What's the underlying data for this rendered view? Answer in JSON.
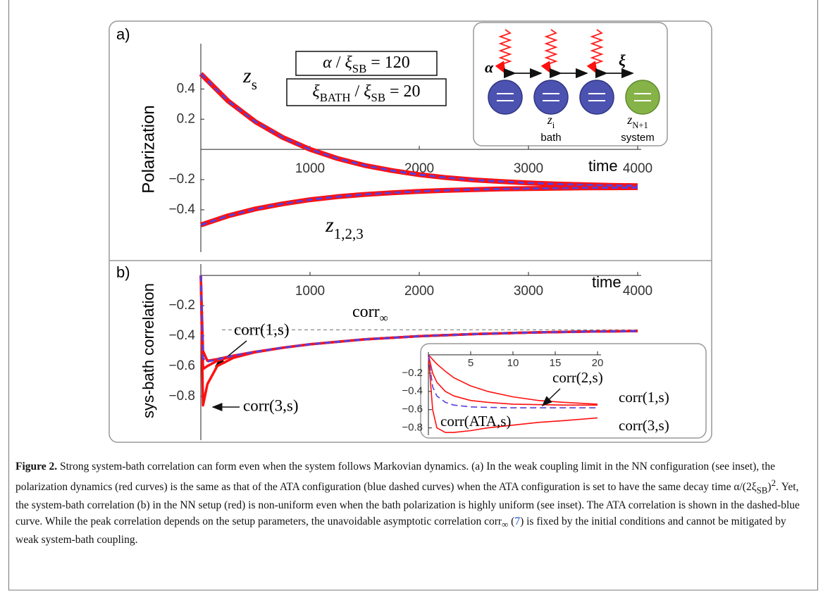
{
  "chart_data": [
    {
      "type": "line",
      "panel_label": "a)",
      "ylabel": "Polarization",
      "xlabel": "time",
      "x": [
        0,
        250,
        500,
        750,
        1000,
        1250,
        1500,
        1750,
        2000,
        2250,
        2500,
        2750,
        3000,
        3250,
        3500,
        3750,
        4000
      ],
      "xlim": [
        0,
        4000
      ],
      "ylim": [
        -0.68,
        0.7
      ],
      "xticks": [
        1000,
        2000,
        3000,
        4000
      ],
      "yticks": [
        {
          "value": -0.4,
          "label": "−0.4"
        },
        {
          "value": -0.2,
          "label": "−0.2"
        },
        0.2,
        0.4
      ],
      "series": [
        {
          "color": "#ff1010",
          "style": "solid",
          "values": [
            0.5,
            0.32,
            0.183,
            0.079,
            0.0,
            -0.06,
            -0.106,
            -0.14,
            -0.167,
            -0.187,
            -0.202,
            -0.213,
            -0.222,
            -0.229,
            -0.234,
            -0.238,
            -0.241
          ]
        },
        {
          "color": "#ff1010",
          "style": "solid",
          "values": [
            -0.5,
            -0.44,
            -0.394,
            -0.36,
            -0.333,
            -0.313,
            -0.298,
            -0.287,
            -0.278,
            -0.271,
            -0.266,
            -0.262,
            -0.259,
            -0.257,
            -0.255,
            -0.254,
            -0.253
          ]
        },
        {
          "color": "#5a3fd8",
          "style": "dashed",
          "values": [
            0.5,
            0.32,
            0.183,
            0.079,
            0.0,
            -0.06,
            -0.106,
            -0.14,
            -0.167,
            -0.187,
            -0.202,
            -0.213,
            -0.222,
            -0.229,
            -0.234,
            -0.238,
            -0.241
          ]
        },
        {
          "color": "#5a3fd8",
          "style": "dashed",
          "values": [
            -0.5,
            -0.44,
            -0.394,
            -0.36,
            -0.333,
            -0.313,
            -0.298,
            -0.287,
            -0.278,
            -0.271,
            -0.266,
            -0.262,
            -0.259,
            -0.257,
            -0.255,
            -0.254,
            -0.253
          ]
        }
      ],
      "annotations": [
        [
          {
            "i": "z"
          },
          {
            "sub": "s"
          }
        ],
        [
          {
            "i": "z"
          },
          {
            "sub": "1,2,3"
          }
        ]
      ],
      "boxes": [
        [
          {
            "i": "α"
          },
          {
            "t": " / "
          },
          {
            "i": "ξ"
          },
          {
            "sub": "SB"
          },
          {
            "t": " = 120"
          }
        ],
        [
          {
            "i": "ξ"
          },
          {
            "sub": "BATH"
          },
          {
            "t": " / "
          },
          {
            "i": "ξ"
          },
          {
            "sub": "SB"
          },
          {
            "t": " = 20"
          }
        ]
      ]
    },
    {
      "type": "line",
      "panel_label": "b)",
      "ylabel": "sys-bath correlation",
      "xlabel": "time",
      "x": [
        0,
        20,
        60,
        150,
        300,
        500,
        750,
        1000,
        1500,
        2000,
        2500,
        3000,
        3500,
        4000
      ],
      "xlim": [
        0,
        4000
      ],
      "ylim": [
        -1.09,
        0.075
      ],
      "xticks": [
        1000,
        2000,
        3000,
        4000
      ],
      "yticks": [
        {
          "value": -0.8,
          "label": "−0.8"
        },
        {
          "value": -0.6,
          "label": "−0.6"
        },
        {
          "value": -0.4,
          "label": "−0.4"
        },
        {
          "value": -0.2,
          "label": "−0.2"
        }
      ],
      "asymptote": -0.36,
      "asymptote_label": [
        {
          "t": "corr"
        },
        {
          "sub": "∞"
        }
      ],
      "series": [
        {
          "name": "corr(1,s)",
          "color": "#ff1010",
          "style": "solid",
          "values": [
            0,
            -0.5,
            -0.565,
            -0.554,
            -0.531,
            -0.505,
            -0.478,
            -0.456,
            -0.423,
            -0.402,
            -0.388,
            -0.378,
            -0.372,
            -0.368
          ]
        },
        {
          "color": "#ff1010",
          "style": "solid",
          "values": [
            0,
            -0.62,
            -0.6,
            -0.565,
            -0.533,
            -0.506,
            -0.478,
            -0.456,
            -0.423,
            -0.402,
            -0.388,
            -0.378,
            -0.372,
            -0.368
          ]
        },
        {
          "name": "corr(3,s)",
          "color": "#ff1010",
          "style": "solid",
          "values": [
            0,
            -0.86,
            -0.72,
            -0.6,
            -0.545,
            -0.508,
            -0.479,
            -0.456,
            -0.423,
            -0.402,
            -0.388,
            -0.378,
            -0.372,
            -0.368
          ]
        },
        {
          "color": "#5a3fd8",
          "style": "dashed",
          "values": [
            0,
            -0.55,
            -0.57,
            -0.556,
            -0.531,
            -0.505,
            -0.478,
            -0.456,
            -0.423,
            -0.402,
            -0.388,
            -0.378,
            -0.372,
            -0.368
          ]
        }
      ]
    },
    {
      "type": "line",
      "x": [
        0,
        0.5,
        1,
        2,
        3,
        5,
        7,
        10,
        13,
        16,
        20
      ],
      "xlim": [
        0,
        20
      ],
      "ylim": [
        -0.88,
        0.03
      ],
      "xticks": [
        5,
        10,
        15,
        20
      ],
      "yticks": [
        {
          "value": -0.8,
          "label": "−0.8"
        },
        {
          "value": -0.6,
          "label": "−0.6"
        },
        {
          "value": -0.4,
          "label": "−0.4"
        },
        {
          "value": -0.2,
          "label": "−0.2"
        }
      ],
      "series": [
        {
          "name": "corr(1,s)",
          "color": "#ff1010",
          "style": "solid",
          "values": [
            0,
            -0.05,
            -0.1,
            -0.18,
            -0.25,
            -0.34,
            -0.4,
            -0.46,
            -0.5,
            -0.52,
            -0.54
          ]
        },
        {
          "name": "corr(2,s)",
          "color": "#ff1010",
          "style": "solid",
          "values": [
            0,
            -0.2,
            -0.3,
            -0.4,
            -0.45,
            -0.5,
            -0.52,
            -0.54,
            -0.545,
            -0.55,
            -0.55
          ]
        },
        {
          "name": "corr(3,s)",
          "color": "#ff1010",
          "style": "solid",
          "values": [
            0,
            -0.6,
            -0.8,
            -0.85,
            -0.85,
            -0.83,
            -0.8,
            -0.77,
            -0.74,
            -0.72,
            -0.69
          ]
        },
        {
          "name": "corr(ATA,s)",
          "color": "#5a3fd8",
          "style": "dashed",
          "values": [
            0,
            -0.35,
            -0.45,
            -0.52,
            -0.55,
            -0.57,
            -0.575,
            -0.58,
            -0.58,
            -0.58,
            -0.58
          ]
        }
      ]
    }
  ],
  "diagram": {
    "alpha": "α",
    "xi": "ξ",
    "bath_site": [
      {
        "i": "z"
      },
      {
        "sub": "i"
      }
    ],
    "system_site": [
      {
        "i": "z"
      },
      {
        "sub": "N+1"
      }
    ],
    "bath": "bath",
    "system": "system"
  },
  "caption": [
    {
      "b": "Figure 2."
    },
    {
      "t": " Strong system-bath correlation can form even when the system follows Markovian dynamics. (a) In the weak coupling limit in the NN configuration (see inset), the polarization dynamics (red curves) is the same as that of the ATA configuration (blue dashed curves) when the ATA configuration is set to have the same decay time α/(2ξ"
    },
    {
      "sub": "SB"
    },
    {
      "t": ")"
    },
    {
      "sup": "2"
    },
    {
      "t": ". Yet, the system-bath correlation (b) in the NN setup (red) is non-uniform even when the bath polarization is highly uniform (see inset). The ATA correlation is shown in the dashed-blue curve. While the peak correlation depends on the setup parameters, the unavoidable asymptotic correlation corr"
    },
    {
      "sub": "∞"
    },
    {
      "t": " ("
    },
    {
      "link": "7"
    },
    {
      "t": ") is fixed by the initial conditions and cannot be mitigated by weak system-bath coupling."
    }
  ]
}
